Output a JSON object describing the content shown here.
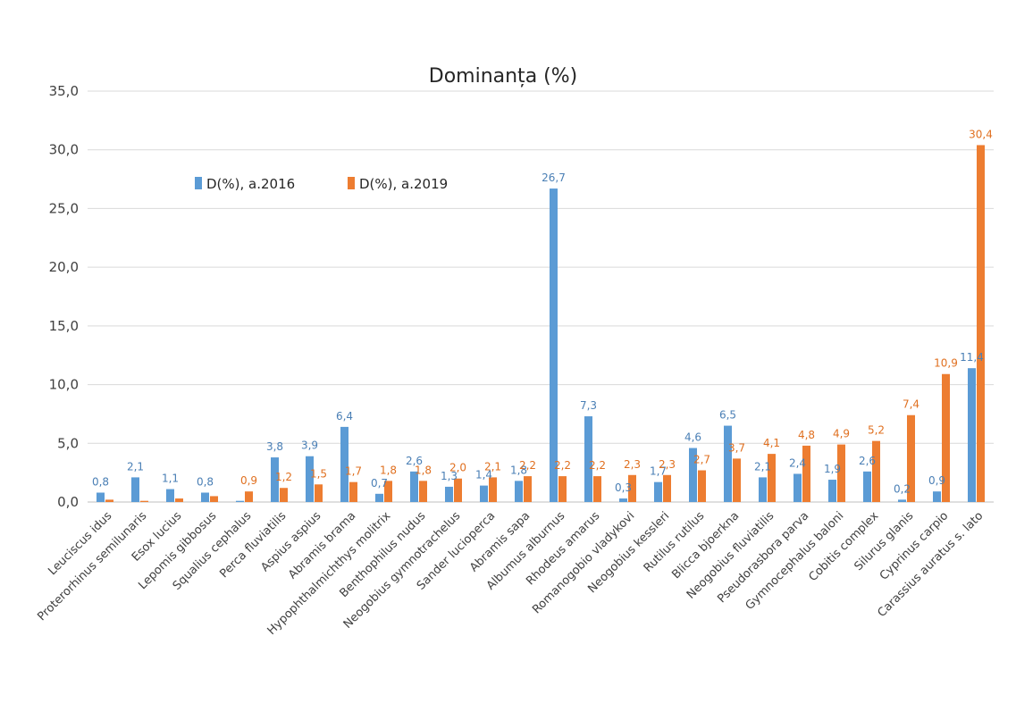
{
  "chart_data": {
    "type": "bar",
    "title": "Dominanța  (%)",
    "xlabel": "",
    "ylabel": "",
    "ylim": [
      0,
      35
    ],
    "yticks": [
      "0,0",
      "5,0",
      "10,0",
      "15,0",
      "20,0",
      "25,0",
      "30,0",
      "35,0"
    ],
    "grid": true,
    "legend_position": "top-left",
    "categories": [
      "Leuciscus idus",
      "Proterorhinus semilunaris",
      "Esox lucius",
      "Lepomis gibbosus",
      "Squalius cephalus",
      "Perca fluviatilis",
      "Aspius aspius",
      "Abramis brama",
      "Hypophthalmichthys molitrix",
      "Benthophilus  nudus",
      "Neogobius gymnotrachelus",
      "Sander lucioperca",
      "Abramis sapa",
      "Albumus alburnus",
      "Rhodeus amarus",
      "Romanogobio vladykovi",
      "Neogobius kessleri",
      "Rutilus rutilus",
      "Blicca bjoerkna",
      "Neogobius fluviatilis",
      "Pseudorasbora parva",
      "Gymnocephalus baloni",
      "Cobitis complex",
      "Silurus glanis",
      "Cyprinus carpio",
      "Carassius auratus s. lato"
    ],
    "series": [
      {
        "name": "D(%), a.2016",
        "color": "#5b9bd5",
        "values": [
          0.8,
          2.1,
          1.1,
          0.8,
          0.1,
          3.8,
          3.9,
          6.4,
          0.7,
          2.6,
          1.3,
          1.4,
          1.8,
          26.7,
          7.3,
          0.3,
          1.7,
          4.6,
          6.5,
          2.1,
          2.4,
          1.9,
          2.6,
          0.2,
          0.9,
          11.4
        ],
        "labels": [
          "0,8",
          "2,1",
          "1,1",
          "0,8",
          "",
          "3,8",
          "3,9",
          "6,4",
          "0,7",
          "2,6",
          "1,3",
          "1,4",
          "1,8",
          "26,7",
          "7,3",
          "0,3",
          "1,7",
          "4,6",
          "6,5",
          "2,1",
          "2,4",
          "1,9",
          "2,6",
          "0,2",
          "0,9",
          "11,4"
        ]
      },
      {
        "name": "D(%), a.2019",
        "color": "#ed7d31",
        "values": [
          0.2,
          0.1,
          0.3,
          0.5,
          0.9,
          1.2,
          1.5,
          1.7,
          1.8,
          1.8,
          2.0,
          2.1,
          2.2,
          2.2,
          2.2,
          2.3,
          2.3,
          2.7,
          3.7,
          4.1,
          4.8,
          4.9,
          5.2,
          7.4,
          10.9,
          30.4
        ],
        "labels": [
          "",
          "",
          "",
          "",
          "0,9",
          "1,2",
          "1,5",
          "1,7",
          "1,8",
          "1,8",
          "2,0",
          "2,1",
          "2,2",
          "2,2",
          "2,2",
          "2,3",
          "2,3",
          "2,7",
          "3,7",
          "4,1",
          "4,8",
          "4,9",
          "5,2",
          "7,4",
          "10,9",
          "30,4"
        ]
      }
    ]
  }
}
